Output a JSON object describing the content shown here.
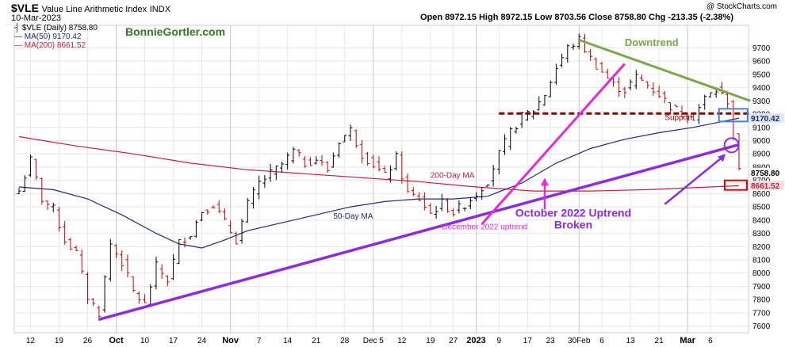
{
  "header": {
    "symbol": "$VLE",
    "name": "Value Line Arithmetic Index",
    "exchange": "INDX",
    "date": "10-Mar-2023",
    "copyright": "@ StockCharts.com",
    "ohlc": "Open 8972.15  High 8972.15  Low 8703.56  Close 8758.80  Chg -213.35 (-2.38%)"
  },
  "legend": {
    "price": "$VLE (Daily) 8758.80",
    "ma50": "MA(50) 9170.42",
    "ma200": "MA(200) 8661.52"
  },
  "watermark": "BonnieGortler.com",
  "colors": {
    "candle": "#000000",
    "down_candle": "#cc0000",
    "ma50": "#1f2a80",
    "ma200": "#c81d3a",
    "trend": "#8b2be2",
    "dec_trend": "#e62ad6",
    "downtrend": "#7aa84a",
    "support": "#8b0000",
    "blue_box": "#4a80d0",
    "red_box": "#e00000",
    "grid": "#e6e6e6"
  },
  "chart_data": {
    "type": "candlestick",
    "ylim": [
      7550,
      9870
    ],
    "y_ticks": [
      7600,
      7700,
      7800,
      7900,
      8000,
      8100,
      8200,
      8300,
      8400,
      8500,
      8600,
      8700,
      8800,
      8900,
      9000,
      9100,
      9200,
      9300,
      9400,
      9500,
      9600,
      9700
    ],
    "x_tick_labels": [
      "12",
      "19",
      "26",
      "Oct",
      "10",
      "17",
      "24",
      "Nov",
      "7",
      "14",
      "21",
      "28",
      "Dec 5",
      "12",
      "19",
      "27",
      "2023",
      "9",
      "17",
      "23",
      "30Feb",
      "6",
      "13",
      "21",
      "Mar",
      "6"
    ],
    "bold_x_ticks": [
      "Oct",
      "Nov",
      "2023",
      "Mar"
    ],
    "month_boundary_ticks": [
      "Oct",
      "Nov",
      "Dec 5",
      "2023",
      "30Feb",
      "Mar"
    ],
    "x_range": [
      0,
      126
    ],
    "tick_positions": [
      2,
      7,
      12,
      17,
      22,
      27,
      32,
      37,
      42,
      47,
      52,
      57,
      62,
      67,
      72,
      76,
      80,
      84,
      89,
      93,
      98,
      102,
      107,
      112,
      117,
      121
    ],
    "last_close": 8758.8,
    "ma50_last": 9170.42,
    "ma200_last": 8661.52,
    "last_close_label": "8758.80",
    "ma50_label": "9170.42",
    "ma200_label": "8661.52",
    "pivots": [
      [
        0,
        8620
      ],
      [
        2,
        8850
      ],
      [
        4,
        8560
      ],
      [
        6,
        8480
      ],
      [
        8,
        8250
      ],
      [
        10,
        8150
      ],
      [
        12,
        7820
      ],
      [
        14,
        7700
      ],
      [
        16,
        8220
      ],
      [
        18,
        8080
      ],
      [
        20,
        7860
      ],
      [
        22,
        7760
      ],
      [
        24,
        8050
      ],
      [
        26,
        7950
      ],
      [
        28,
        8230
      ],
      [
        30,
        8300
      ],
      [
        32,
        8470
      ],
      [
        34,
        8520
      ],
      [
        36,
        8380
      ],
      [
        38,
        8250
      ],
      [
        40,
        8520
      ],
      [
        42,
        8680
      ],
      [
        44,
        8750
      ],
      [
        46,
        8820
      ],
      [
        48,
        8920
      ],
      [
        50,
        8830
      ],
      [
        52,
        8860
      ],
      [
        54,
        8780
      ],
      [
        56,
        9000
      ],
      [
        58,
        9080
      ],
      [
        60,
        8900
      ],
      [
        62,
        8820
      ],
      [
        64,
        8730
      ],
      [
        66,
        8870
      ],
      [
        68,
        8600
      ],
      [
        70,
        8560
      ],
      [
        72,
        8450
      ],
      [
        74,
        8530
      ],
      [
        76,
        8460
      ],
      [
        78,
        8520
      ],
      [
        80,
        8600
      ],
      [
        82,
        8700
      ],
      [
        84,
        8900
      ],
      [
        86,
        9060
      ],
      [
        88,
        9180
      ],
      [
        90,
        9230
      ],
      [
        92,
        9350
      ],
      [
        94,
        9550
      ],
      [
        96,
        9700
      ],
      [
        98,
        9760
      ],
      [
        100,
        9620
      ],
      [
        102,
        9520
      ],
      [
        104,
        9420
      ],
      [
        106,
        9380
      ],
      [
        108,
        9480
      ],
      [
        110,
        9420
      ],
      [
        112,
        9350
      ],
      [
        114,
        9260
      ],
      [
        116,
        9200
      ],
      [
        118,
        9180
      ],
      [
        120,
        9320
      ],
      [
        122,
        9380
      ],
      [
        124,
        9300
      ],
      [
        126,
        8760
      ]
    ],
    "ma50_points": [
      [
        0,
        8650
      ],
      [
        6,
        8630
      ],
      [
        12,
        8560
      ],
      [
        18,
        8440
      ],
      [
        24,
        8300
      ],
      [
        28,
        8220
      ],
      [
        32,
        8190
      ],
      [
        36,
        8250
      ],
      [
        40,
        8320
      ],
      [
        46,
        8380
      ],
      [
        52,
        8440
      ],
      [
        58,
        8500
      ],
      [
        64,
        8540
      ],
      [
        70,
        8560
      ],
      [
        76,
        8560
      ],
      [
        82,
        8580
      ],
      [
        88,
        8680
      ],
      [
        94,
        8830
      ],
      [
        100,
        8940
      ],
      [
        106,
        9010
      ],
      [
        112,
        9060
      ],
      [
        118,
        9100
      ],
      [
        126,
        9170
      ]
    ],
    "ma200_points": [
      [
        0,
        9030
      ],
      [
        10,
        8960
      ],
      [
        20,
        8900
      ],
      [
        30,
        8830
      ],
      [
        40,
        8780
      ],
      [
        50,
        8750
      ],
      [
        60,
        8720
      ],
      [
        70,
        8690
      ],
      [
        80,
        8650
      ],
      [
        90,
        8620
      ],
      [
        100,
        8620
      ],
      [
        110,
        8630
      ],
      [
        118,
        8645
      ],
      [
        126,
        8660
      ]
    ],
    "trendlines": [
      {
        "name": "october-uptrend",
        "from": [
          14,
          7650
        ],
        "to": [
          126,
          8970
        ]
      },
      {
        "name": "december-uptrend",
        "from": [
          81,
          8370
        ],
        "to": [
          106,
          9580
        ]
      },
      {
        "name": "downtrend",
        "from": [
          98,
          9760
        ],
        "to": [
          128,
          9300
        ]
      },
      {
        "name": "support",
        "from": [
          84,
          9205
        ],
        "to": [
          128,
          9205
        ]
      }
    ],
    "annotations": {
      "downtrend": "Downtrend",
      "support": "Support",
      "ma200": "200-Day MA",
      "ma50": "50-Day MA",
      "dec_uptrend": "December 2022 uptrend",
      "oct_uptrend_line1": "October 2022 Uptrend",
      "oct_uptrend_line2": "Broken"
    }
  }
}
